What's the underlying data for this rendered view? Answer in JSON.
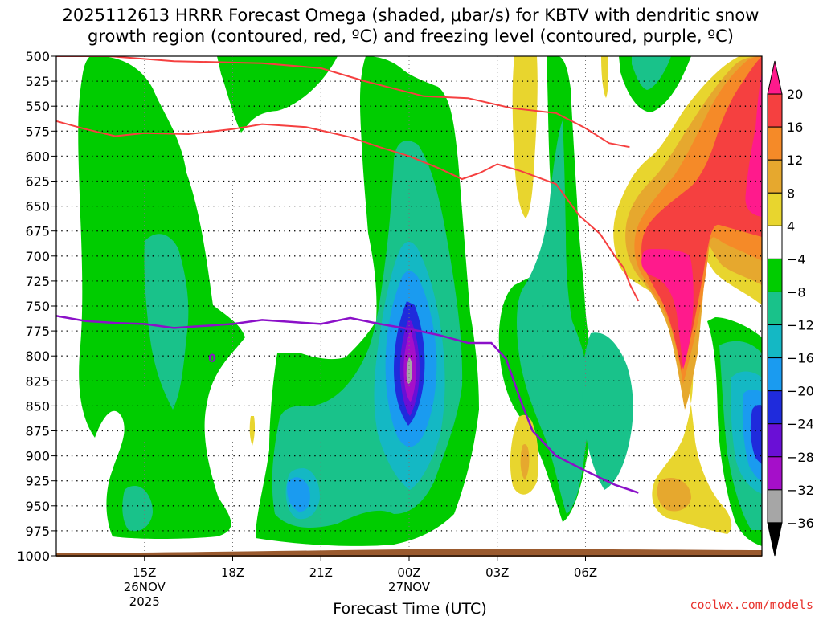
{
  "chart_data": {
    "type": "heatmap",
    "title_line1": "2025112613 HRRR Forecast Omega (shaded, μbar/s) for KBTV with dendritic snow",
    "title_line2": "growth region (contoured, red, ºC) and freezing level (contoured, purple, ºC)",
    "xlabel": "Forecast Time (UTC)",
    "credit": "coolwx.com/models",
    "y_axis": {
      "ticks": [
        500,
        525,
        550,
        575,
        600,
        625,
        650,
        675,
        700,
        725,
        750,
        775,
        800,
        825,
        850,
        875,
        900,
        925,
        950,
        975,
        1000
      ],
      "min": 500,
      "max": 1000
    },
    "x_axis": {
      "min_hour": 12,
      "max_hour": 36,
      "ticks": [
        {
          "hour": 15,
          "label": "15Z",
          "date": "26NOV",
          "year": "2025"
        },
        {
          "hour": 18,
          "label": "18Z",
          "date": "",
          "year": ""
        },
        {
          "hour": 21,
          "label": "21Z",
          "date": "",
          "year": ""
        },
        {
          "hour": 24,
          "label": "00Z",
          "date": "27NOV",
          "year": ""
        },
        {
          "hour": 27,
          "label": "03Z",
          "date": "",
          "year": ""
        },
        {
          "hour": 30,
          "label": "06Z",
          "date": "",
          "year": ""
        }
      ]
    },
    "colorbar": {
      "labels": [
        "20",
        "16",
        "12",
        "8",
        "4",
        "−4",
        "−8",
        "−12",
        "−16",
        "−20",
        "−24",
        "−28",
        "−32",
        "−36"
      ],
      "colors": [
        "#ff1a8c",
        "#f54040",
        "#f58a28",
        "#e6a82e",
        "#e8d52e",
        "#ffffff",
        "#00cc00",
        "#19c28a",
        "#14b8c4",
        "#1a9bf0",
        "#1f2bdc",
        "#6a0fd6",
        "#a50fc9",
        "#a6a6a6",
        "#000000"
      ]
    },
    "freezing_level_label": "0",
    "dgz_top": [
      [
        12.0,
        500
      ],
      [
        13.8,
        500
      ],
      [
        16.0,
        505
      ],
      [
        19.0,
        507
      ],
      [
        21.0,
        512
      ],
      [
        22.5,
        525
      ],
      [
        24.5,
        540
      ],
      [
        26.0,
        542
      ],
      [
        27.5,
        552
      ],
      [
        29.0,
        557
      ],
      [
        30.0,
        572
      ],
      [
        30.8,
        587
      ],
      [
        31.5,
        591
      ]
    ],
    "dgz_bottom": [
      [
        12.0,
        565
      ],
      [
        13.0,
        573
      ],
      [
        14.0,
        580
      ],
      [
        15.0,
        577
      ],
      [
        16.5,
        578
      ],
      [
        18.0,
        573
      ],
      [
        19.0,
        568
      ],
      [
        20.5,
        571
      ],
      [
        22.0,
        581
      ],
      [
        23.0,
        591
      ],
      [
        24.0,
        600
      ],
      [
        25.0,
        612
      ],
      [
        25.8,
        623
      ],
      [
        26.4,
        617
      ],
      [
        27.0,
        608
      ],
      [
        27.8,
        615
      ],
      [
        29.0,
        628
      ],
      [
        29.8,
        660
      ],
      [
        30.5,
        678
      ],
      [
        31.0,
        700
      ],
      [
        31.3,
        712
      ],
      [
        31.5,
        728
      ],
      [
        31.8,
        745
      ]
    ],
    "freezing_level": [
      [
        12.0,
        760
      ],
      [
        13.0,
        765
      ],
      [
        14.0,
        767
      ],
      [
        15.0,
        768
      ],
      [
        16.0,
        772
      ],
      [
        17.0,
        770
      ],
      [
        18.0,
        768
      ],
      [
        19.0,
        764
      ],
      [
        20.0,
        766
      ],
      [
        21.0,
        768
      ],
      [
        22.0,
        762
      ],
      [
        23.0,
        768
      ],
      [
        24.0,
        773
      ],
      [
        25.0,
        779
      ],
      [
        26.0,
        787
      ],
      [
        26.8,
        787
      ],
      [
        27.3,
        803
      ],
      [
        27.8,
        845
      ],
      [
        28.2,
        875
      ],
      [
        29.0,
        900
      ],
      [
        30.0,
        915
      ],
      [
        31.0,
        929
      ],
      [
        31.8,
        937
      ]
    ]
  }
}
